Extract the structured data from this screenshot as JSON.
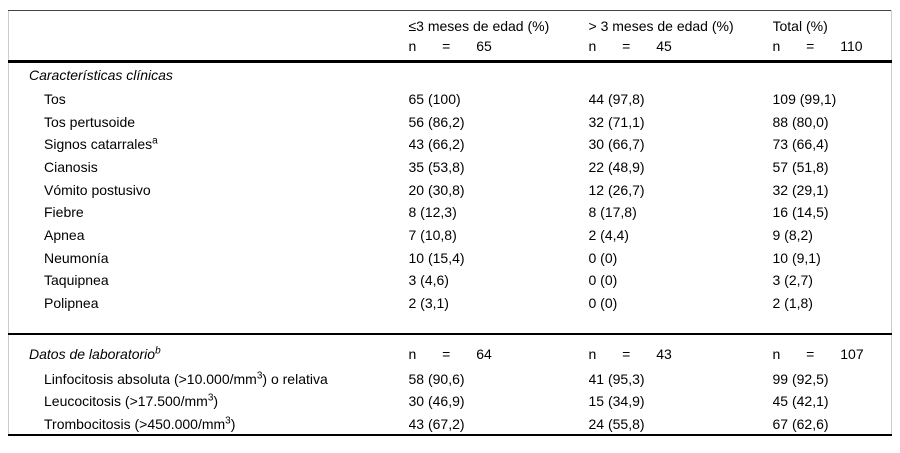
{
  "page": {
    "background": "#ffffff"
  },
  "table": {
    "rule_color": "#000000",
    "frame_color": "#cccccc",
    "columns": [
      {
        "header": "≤3 meses de edad (%)",
        "n_line": "n = 65"
      },
      {
        "header": "> 3 meses de edad (%)",
        "n_line": "n = 45"
      },
      {
        "header": "Total (%)",
        "n_line": "n = 110"
      }
    ],
    "sections": [
      {
        "title_parts": [
          {
            "text": "Características clínicas",
            "sup": false
          }
        ],
        "n_values": [
          "",
          "",
          ""
        ],
        "spacer_after": true,
        "rows": [
          {
            "label_parts": [
              {
                "text": "Tos",
                "sup": false
              }
            ],
            "values": [
              "65 (100)",
              "44 (97,8)",
              "109 (99,1)"
            ]
          },
          {
            "label_parts": [
              {
                "text": "Tos pertusoide",
                "sup": false
              }
            ],
            "values": [
              "56 (86,2)",
              "32 (71,1)",
              "88 (80,0)"
            ]
          },
          {
            "label_parts": [
              {
                "text": "Signos catarrales",
                "sup": false
              },
              {
                "text": "a",
                "sup": true
              }
            ],
            "values": [
              "43 (66,2)",
              "30 (66,7)",
              "73 (66,4)"
            ]
          },
          {
            "label_parts": [
              {
                "text": "Cianosis",
                "sup": false
              }
            ],
            "values": [
              "35 (53,8)",
              "22 (48,9)",
              "57 (51,8)"
            ]
          },
          {
            "label_parts": [
              {
                "text": "Vómito postusivo",
                "sup": false
              }
            ],
            "values": [
              "20 (30,8)",
              "12 (26,7)",
              "32 (29,1)"
            ]
          },
          {
            "label_parts": [
              {
                "text": "Fiebre",
                "sup": false
              }
            ],
            "values": [
              "8 (12,3)",
              "8 (17,8)",
              "16 (14,5)"
            ]
          },
          {
            "label_parts": [
              {
                "text": "Apnea",
                "sup": false
              }
            ],
            "values": [
              "7 (10,8)",
              "2 (4,4)",
              "9 (8,2)"
            ]
          },
          {
            "label_parts": [
              {
                "text": "Neumonía",
                "sup": false
              }
            ],
            "values": [
              "10 (15,4)",
              "0 (0)",
              "10 (9,1)"
            ]
          },
          {
            "label_parts": [
              {
                "text": "Taquipnea",
                "sup": false
              }
            ],
            "values": [
              "3 (4,6)",
              "0 (0)",
              "3 (2,7)"
            ]
          },
          {
            "label_parts": [
              {
                "text": "Polipnea",
                "sup": false
              }
            ],
            "values": [
              "2 (3,1)",
              "0 (0)",
              "2 (1,8)"
            ]
          }
        ]
      },
      {
        "title_parts": [
          {
            "text": "Datos de laboratorio",
            "sup": false
          },
          {
            "text": "b",
            "sup": true
          }
        ],
        "n_values": [
          "n = 64",
          "n = 43",
          "n = 107"
        ],
        "spacer_after": false,
        "rows": [
          {
            "label_parts": [
              {
                "text": "Linfocitosis absoluta (>10.000/mm",
                "sup": false
              },
              {
                "text": "3",
                "sup": true
              },
              {
                "text": ") o relativa",
                "sup": false
              }
            ],
            "values": [
              "58 (90,6)",
              "41 (95,3)",
              "99 (92,5)"
            ]
          },
          {
            "label_parts": [
              {
                "text": "Leucocitosis (>17.500/mm",
                "sup": false
              },
              {
                "text": "3",
                "sup": true
              },
              {
                "text": ")",
                "sup": false
              }
            ],
            "values": [
              "30 (46,9)",
              "15 (34,9)",
              "45 (42,1)"
            ]
          },
          {
            "label_parts": [
              {
                "text": "Trombocitosis (>450.000/mm",
                "sup": false
              },
              {
                "text": "3",
                "sup": true
              },
              {
                "text": ")",
                "sup": false
              }
            ],
            "values": [
              "43 (67,2)",
              "24 (55,8)",
              "67 (62,6)"
            ]
          }
        ]
      }
    ]
  }
}
